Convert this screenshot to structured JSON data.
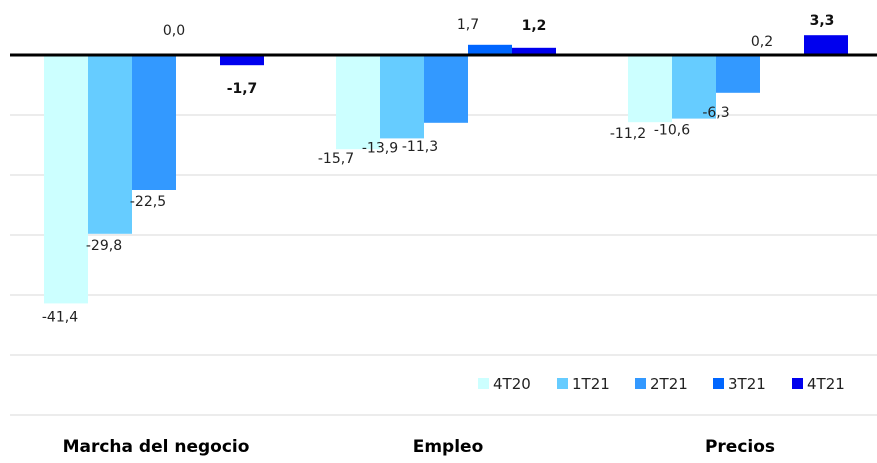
{
  "chart_data": {
    "type": "bar",
    "title": "",
    "xlabel": "",
    "ylabel": "",
    "categories": [
      "Marcha del negocio",
      "Empleo",
      "Precios"
    ],
    "series": [
      {
        "name": "4T20",
        "color": "#ccffff",
        "values": [
          -41.4,
          -15.7,
          -11.2
        ],
        "labels": [
          "-41,4",
          "-15,7",
          "-11,2"
        ]
      },
      {
        "name": "1T21",
        "color": "#66ccff",
        "values": [
          -29.8,
          -13.9,
          -10.6
        ],
        "labels": [
          "-29,8",
          "-13,9",
          "-10,6"
        ]
      },
      {
        "name": "2T21",
        "color": "#3399ff",
        "values": [
          -22.5,
          -11.3,
          -6.3
        ],
        "labels": [
          "-22,5",
          "-11,3",
          "-6,3"
        ]
      },
      {
        "name": "3T21",
        "color": "#0066ff",
        "values": [
          0.0,
          1.7,
          0.2
        ],
        "labels": [
          "0,0",
          "1,7",
          "0,2"
        ]
      },
      {
        "name": "4T21",
        "color": "#0000ee",
        "values": [
          -1.7,
          1.2,
          3.3
        ],
        "labels": [
          "-1,7",
          "1,2",
          "3,3"
        ],
        "bold": true
      }
    ],
    "ylim": [
      -50,
      5
    ],
    "gridlines": [
      -10,
      -20,
      -30,
      -40,
      -50,
      -60
    ],
    "grid": true,
    "zero_line": true,
    "legend": "bottom-right"
  }
}
